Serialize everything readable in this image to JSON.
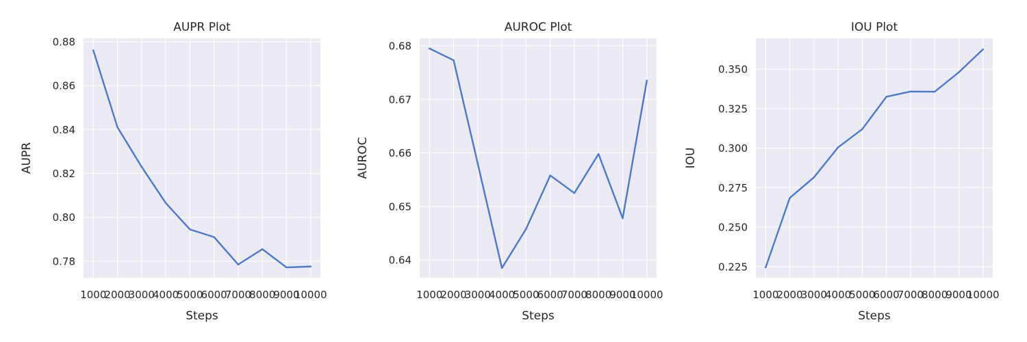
{
  "chart_data": [
    {
      "type": "line",
      "title": "AUPR Plot",
      "xlabel": "Steps",
      "ylabel": "AUPR",
      "x": [
        1000,
        2000,
        3000,
        4000,
        5000,
        6000,
        7000,
        8000,
        9000,
        10000
      ],
      "xticklabels": [
        "1000",
        "2000",
        "3000",
        "4000",
        "5000",
        "6000",
        "7000",
        "8000",
        "9000",
        "10000"
      ],
      "yticks": [
        0.78,
        0.8,
        0.82,
        0.84,
        0.86,
        0.88
      ],
      "yticklabels": [
        "0.78",
        "0.80",
        "0.82",
        "0.84",
        "0.86",
        "0.88"
      ],
      "ylim": [
        0.7725,
        0.8815
      ],
      "grid": true,
      "series": [
        {
          "values": [
            0.876,
            0.841,
            0.823,
            0.8065,
            0.7945,
            0.791,
            0.7785,
            0.7855,
            0.7772,
            0.7776
          ]
        }
      ]
    },
    {
      "type": "line",
      "title": "AUROC Plot",
      "xlabel": "Steps",
      "ylabel": "AUROC",
      "x": [
        1000,
        2000,
        3000,
        4000,
        5000,
        6000,
        7000,
        8000,
        9000,
        10000
      ],
      "xticklabels": [
        "1000",
        "2000",
        "3000",
        "4000",
        "5000",
        "6000",
        "7000",
        "8000",
        "9000",
        "10000"
      ],
      "yticks": [
        0.64,
        0.65,
        0.66,
        0.67,
        0.68
      ],
      "yticklabels": [
        "0.64",
        "0.65",
        "0.66",
        "0.67",
        "0.68"
      ],
      "ylim": [
        0.6367,
        0.6814
      ],
      "grid": true,
      "series": [
        {
          "values": [
            0.6795,
            0.6773,
            0.658,
            0.6385,
            0.6458,
            0.6558,
            0.6525,
            0.6598,
            0.6478,
            0.6735
          ]
        }
      ]
    },
    {
      "type": "line",
      "title": "IOU Plot",
      "xlabel": "Steps",
      "ylabel": "IOU",
      "x": [
        1000,
        2000,
        3000,
        4000,
        5000,
        6000,
        7000,
        8000,
        9000,
        10000
      ],
      "xticklabels": [
        "1000",
        "2000",
        "3000",
        "4000",
        "5000",
        "6000",
        "7000",
        "8000",
        "9000",
        "10000"
      ],
      "yticks": [
        0.225,
        0.25,
        0.275,
        0.3,
        0.325,
        0.35
      ],
      "yticklabels": [
        "0.225",
        "0.250",
        "0.275",
        "0.300",
        "0.325",
        "0.350"
      ],
      "ylim": [
        0.218,
        0.3695
      ],
      "grid": true,
      "series": [
        {
          "values": [
            0.2245,
            0.2685,
            0.2815,
            0.3005,
            0.312,
            0.3325,
            0.3358,
            0.3357,
            0.348,
            0.3625
          ]
        }
      ]
    }
  ],
  "colors": {
    "plot_background": "#eaeaf2",
    "grid": "#ffffff",
    "line": "#4878cf",
    "text": "#262626"
  }
}
